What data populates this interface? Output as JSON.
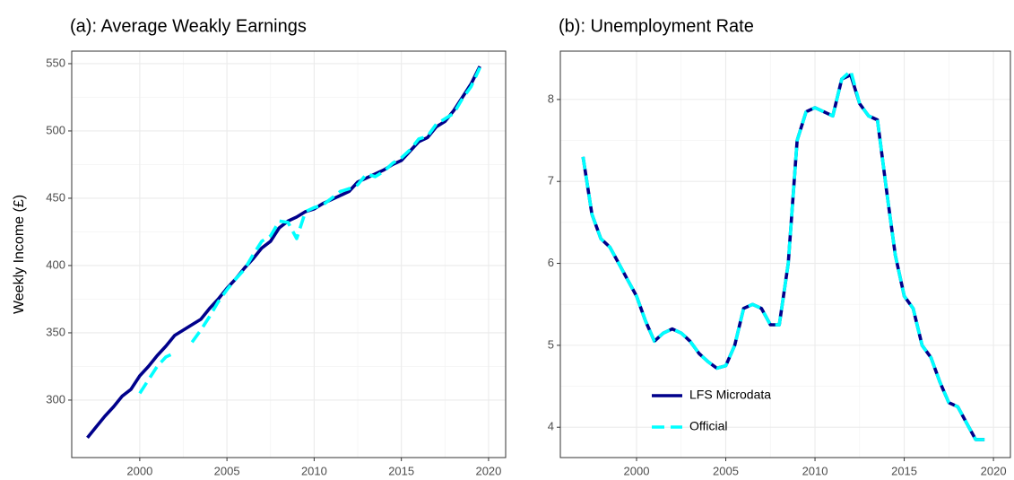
{
  "chart_data": [
    {
      "type": "line",
      "title": "(a): Average Weakly Earnings",
      "y_label": "Weekly Income (£)",
      "x": [
        1997,
        1997.5,
        1998,
        1998.5,
        1999,
        1999.5,
        2000,
        2000.5,
        2001,
        2001.5,
        2002,
        2002.5,
        2003,
        2003.5,
        2004,
        2004.5,
        2005,
        2005.5,
        2006,
        2006.5,
        2007,
        2007.5,
        2008,
        2008.5,
        2009,
        2009.5,
        2010,
        2010.5,
        2011,
        2011.5,
        2012,
        2012.5,
        2013,
        2013.5,
        2014,
        2014.5,
        2015,
        2015.5,
        2016,
        2016.5,
        2017,
        2017.5,
        2018,
        2018.5,
        2019,
        2019.5
      ],
      "series": [
        {
          "color": "#00008b",
          "dashed": false,
          "values": [
            272,
            280,
            288,
            295,
            303,
            308,
            318,
            325,
            333,
            340,
            348,
            352,
            356,
            360,
            368,
            375,
            383,
            390,
            398,
            405,
            413,
            418,
            428,
            433,
            436,
            440,
            442,
            446,
            449,
            452,
            455,
            462,
            465,
            468,
            471,
            475,
            478,
            485,
            492,
            495,
            503,
            507,
            515,
            525,
            535,
            548
          ]
        },
        {
          "color": "#00ffff",
          "dashed": true,
          "values": [
            null,
            null,
            null,
            null,
            null,
            null,
            305,
            315,
            325,
            332,
            335,
            null,
            343,
            352,
            362,
            373,
            382,
            390,
            397,
            408,
            418,
            422,
            433,
            432,
            420,
            440,
            443,
            445,
            450,
            455,
            457,
            460,
            468,
            466,
            470,
            476,
            480,
            486,
            494,
            496,
            505,
            509,
            513,
            524,
            533,
            547
          ]
        }
      ],
      "xlim": [
        1996.1,
        2020.98
      ],
      "ylim": [
        257.3,
        559.3
      ],
      "xticks": [
        2000,
        2005,
        2010,
        2015,
        2020
      ],
      "yticks": [
        300,
        350,
        400,
        450,
        500,
        550
      ],
      "grid": true
    },
    {
      "type": "line",
      "title": "(b): Unemployment Rate",
      "legend": "bottom-left",
      "x": [
        1997,
        1997.5,
        1998,
        1998.5,
        1999,
        1999.5,
        2000,
        2000.5,
        2001,
        2001.5,
        2002,
        2002.5,
        2003,
        2003.5,
        2004,
        2004.5,
        2005,
        2005.5,
        2006,
        2006.5,
        2007,
        2007.5,
        2008,
        2008.5,
        2009,
        2009.5,
        2010,
        2010.5,
        2011,
        2011.5,
        2012,
        2012.5,
        2013,
        2013.5,
        2014,
        2014.5,
        2015,
        2015.5,
        2016,
        2016.5,
        2017,
        2017.5,
        2018,
        2018.5,
        2019,
        2019.5
      ],
      "series": [
        {
          "name": "LFS Microdata",
          "color": "#00008b",
          "dashed": false,
          "values": [
            7.3,
            6.6,
            6.3,
            6.2,
            6.0,
            5.8,
            5.6,
            5.3,
            5.05,
            5.15,
            5.2,
            5.15,
            5.05,
            4.9,
            4.8,
            4.72,
            4.75,
            5.0,
            5.45,
            5.5,
            5.45,
            5.25,
            5.25,
            6.0,
            7.5,
            7.85,
            7.9,
            7.85,
            7.8,
            8.25,
            8.3,
            7.95,
            7.8,
            7.75,
            6.9,
            6.1,
            5.6,
            5.45,
            5.0,
            4.85,
            4.55,
            4.3,
            4.25,
            4.05,
            3.85,
            3.85
          ]
        },
        {
          "name": "Official",
          "color": "#00ffff",
          "dashed": true,
          "values": [
            7.3,
            6.6,
            6.3,
            6.2,
            6.0,
            5.8,
            5.6,
            5.3,
            5.05,
            5.15,
            5.2,
            5.15,
            5.05,
            4.9,
            4.8,
            4.72,
            4.75,
            5.0,
            5.45,
            5.5,
            5.45,
            5.25,
            5.25,
            6.0,
            7.5,
            7.85,
            7.9,
            7.85,
            7.8,
            8.25,
            8.35,
            7.95,
            7.8,
            7.75,
            6.9,
            6.1,
            5.6,
            5.45,
            5.0,
            4.85,
            4.55,
            4.3,
            4.25,
            4.05,
            3.85,
            3.85
          ]
        }
      ],
      "xlim": [
        1995.73,
        2020.95
      ],
      "ylim": [
        3.63,
        8.59
      ],
      "xticks": [
        2000,
        2005,
        2010,
        2015,
        2020
      ],
      "yticks": [
        4,
        5,
        6,
        7,
        8
      ],
      "grid": true
    }
  ]
}
